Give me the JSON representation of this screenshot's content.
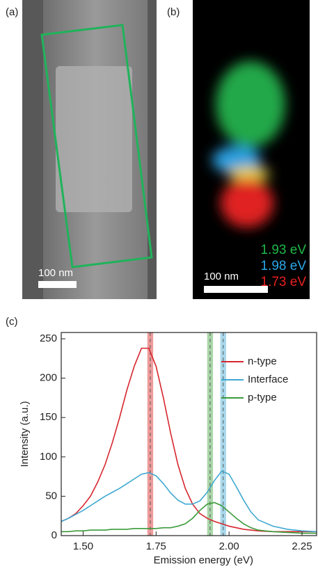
{
  "panels": {
    "a": {
      "label": "(a)",
      "scale_bar": "100 nm"
    },
    "b": {
      "label": "(b)",
      "scale_bar": "100 nm",
      "energies": [
        "1.93 eV",
        "1.98 eV",
        "1.73 eV"
      ]
    }
  },
  "chart_data": {
    "type": "line",
    "label": "(c)",
    "xlabel": "Emission energy (eV)",
    "ylabel": "Intensity (a.u.)",
    "xlim": [
      1.425,
      2.3
    ],
    "ylim": [
      0,
      258
    ],
    "xticks": [
      {
        "value": 1.5,
        "label": "1.50"
      },
      1.75,
      {
        "value": 2.0,
        "label": "2.00"
      },
      2.25
    ],
    "yticks": [
      0,
      50,
      100,
      150,
      200,
      250
    ],
    "legend": "upper right",
    "x": [
      1.425,
      1.45,
      1.475,
      1.5,
      1.525,
      1.55,
      1.575,
      1.6,
      1.625,
      1.65,
      1.675,
      1.7,
      1.725,
      1.75,
      1.775,
      1.8,
      1.825,
      1.85,
      1.875,
      1.9,
      1.925,
      1.95,
      1.975,
      2.0,
      2.025,
      2.05,
      2.075,
      2.1,
      2.15,
      2.2,
      2.25,
      2.3
    ],
    "series": [
      {
        "name": "n-type",
        "color": "#d6262e",
        "values": [
          18,
          22,
          28,
          38,
          50,
          68,
          90,
          118,
          150,
          185,
          215,
          238,
          238,
          215,
          175,
          130,
          90,
          60,
          40,
          28,
          22,
          18,
          15,
          12,
          10,
          8,
          7,
          6,
          5,
          5,
          5,
          5
        ]
      },
      {
        "name": "Interface",
        "color": "#3ea8d0",
        "values": [
          18,
          22,
          27,
          32,
          38,
          44,
          50,
          55,
          60,
          66,
          72,
          78,
          80,
          76,
          66,
          54,
          45,
          40,
          40,
          44,
          55,
          70,
          82,
          78,
          62,
          45,
          30,
          20,
          12,
          8,
          6,
          5
        ]
      },
      {
        "name": "p-type",
        "color": "#3a9a3a",
        "values": [
          5,
          5,
          6,
          6,
          7,
          7,
          7,
          8,
          8,
          8,
          9,
          9,
          9,
          9,
          10,
          10,
          12,
          15,
          22,
          32,
          40,
          42,
          38,
          30,
          22,
          15,
          10,
          7,
          5,
          4,
          3,
          3
        ]
      }
    ],
    "bands": [
      {
        "center": 1.73,
        "width": 0.02,
        "color": "#e87a7a"
      },
      {
        "center": 1.935,
        "width": 0.02,
        "color": "#8cc88c"
      },
      {
        "center": 1.98,
        "width": 0.02,
        "color": "#8ccbe4"
      }
    ]
  }
}
